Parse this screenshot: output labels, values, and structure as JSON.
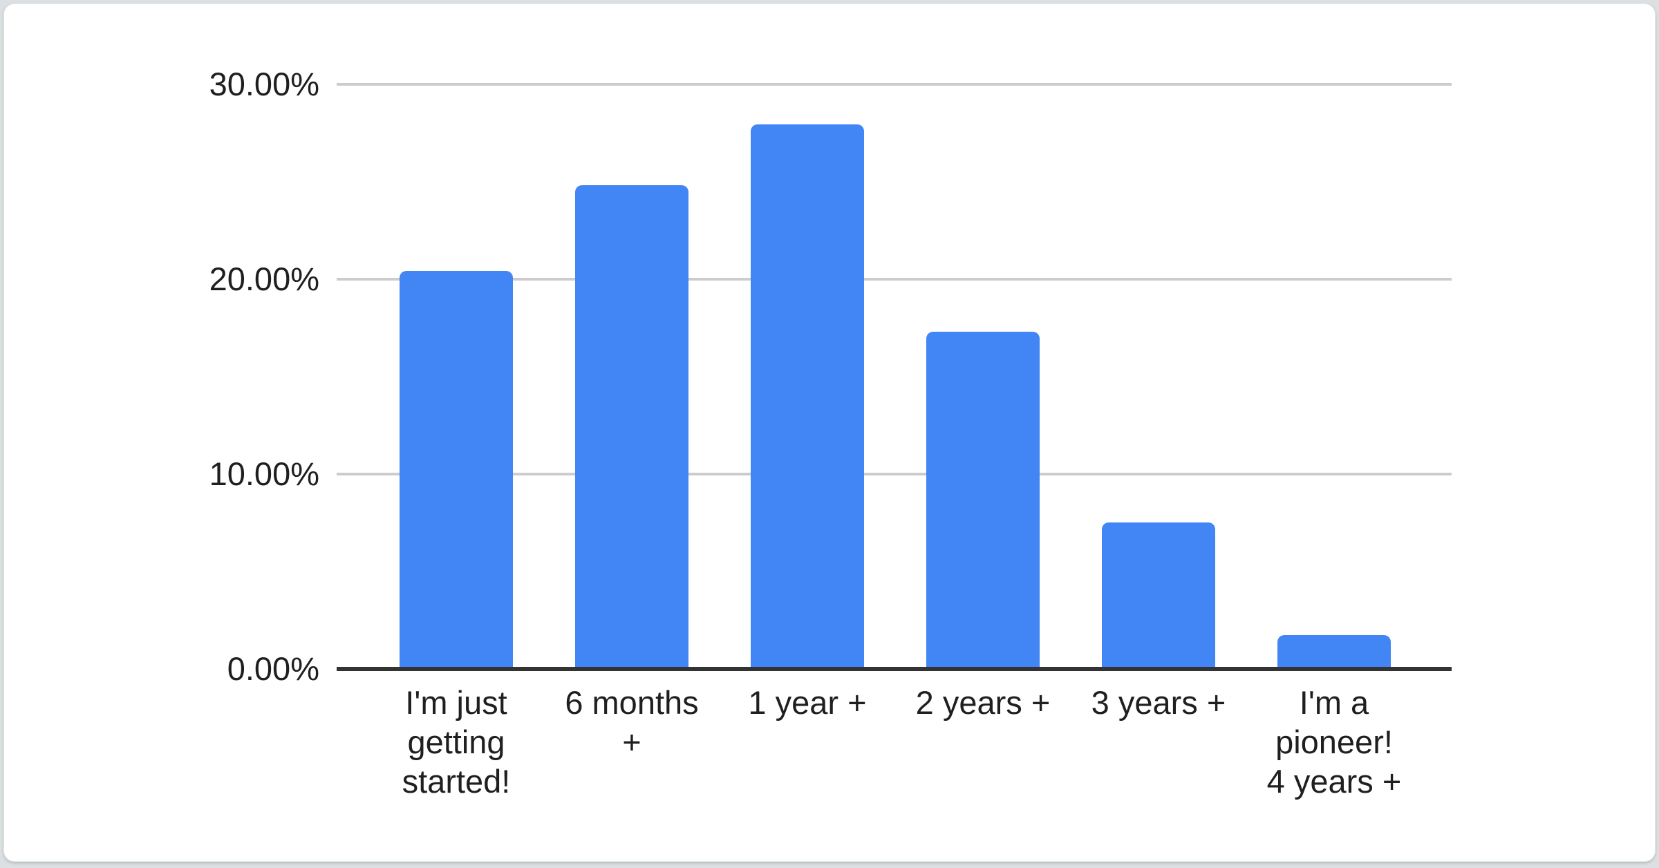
{
  "window": {
    "description": "Survey results bar chart on a white rounded card"
  },
  "colors": {
    "bar": "#4285F4",
    "gridline": "#cccccc",
    "axis": "#333333",
    "label": "#1f1f1f",
    "page_bg": "#dce0e2",
    "card_bg": "#ffffff"
  },
  "chart_data": {
    "type": "bar",
    "title": "",
    "xlabel": "",
    "ylabel": "",
    "legend": "none",
    "grid": true,
    "ylim": [
      0,
      30
    ],
    "value_format": "percent",
    "categories": [
      "I'm just getting started!",
      "6 months +",
      "1 year +",
      "2 years +",
      "3 years +",
      "I'm a pioneer! 4 years +"
    ],
    "category_lines": [
      [
        "I'm just",
        "getting",
        "started!"
      ],
      [
        "6 months",
        "+"
      ],
      [
        "1 year +"
      ],
      [
        "2 years +"
      ],
      [
        "3 years +"
      ],
      [
        "I'm a",
        "pioneer!",
        "4 years +"
      ]
    ],
    "values": [
      20.43,
      24.82,
      27.94,
      17.31,
      7.53,
      1.72
    ],
    "yticks": [
      {
        "value": 0,
        "label": "0.00%"
      },
      {
        "value": 10,
        "label": "10.00%"
      },
      {
        "value": 20,
        "label": "20.00%"
      },
      {
        "value": 30,
        "label": "30.00%"
      }
    ]
  }
}
